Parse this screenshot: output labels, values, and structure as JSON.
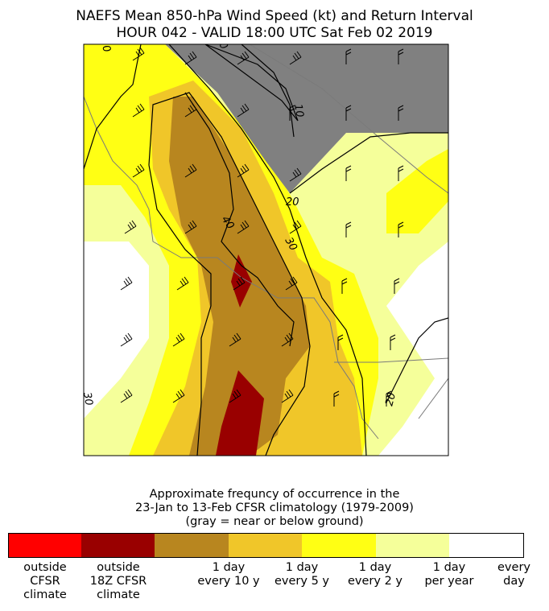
{
  "title_line1": "NAEFS Mean 850-hPa Wind Speed (kt) and Return Interval",
  "title_line2": "HOUR 042 - VALID 18:00 UTC Sat Feb 02 2019",
  "contour_labels": [
    "10",
    "20",
    "20",
    "30",
    "30",
    "40",
    "0",
    "0",
    "20"
  ],
  "legend": {
    "caption_line1": "Approximate frequncy of occurrence in the",
    "caption_line2": "23-Jan to 13-Feb CFSR climatology (1979-2009)",
    "caption_line3": "(gray = near or below ground)",
    "colors": [
      "#ff0000",
      "#990000",
      "#b8861f",
      "#f0c629",
      "#ffff14",
      "#f5ff9a",
      "#ffffff"
    ],
    "labels": [
      "outside\nCFSR\nclimate",
      "outside\n18Z CFSR\nclimate",
      "1 day\nevery 10 y",
      "1 day\nevery 5 y",
      "1 day\nevery 2 y",
      "1 day\nper year",
      "every\nday"
    ]
  },
  "colors": {
    "below_ground": "#808080",
    "frame": "#000000"
  }
}
